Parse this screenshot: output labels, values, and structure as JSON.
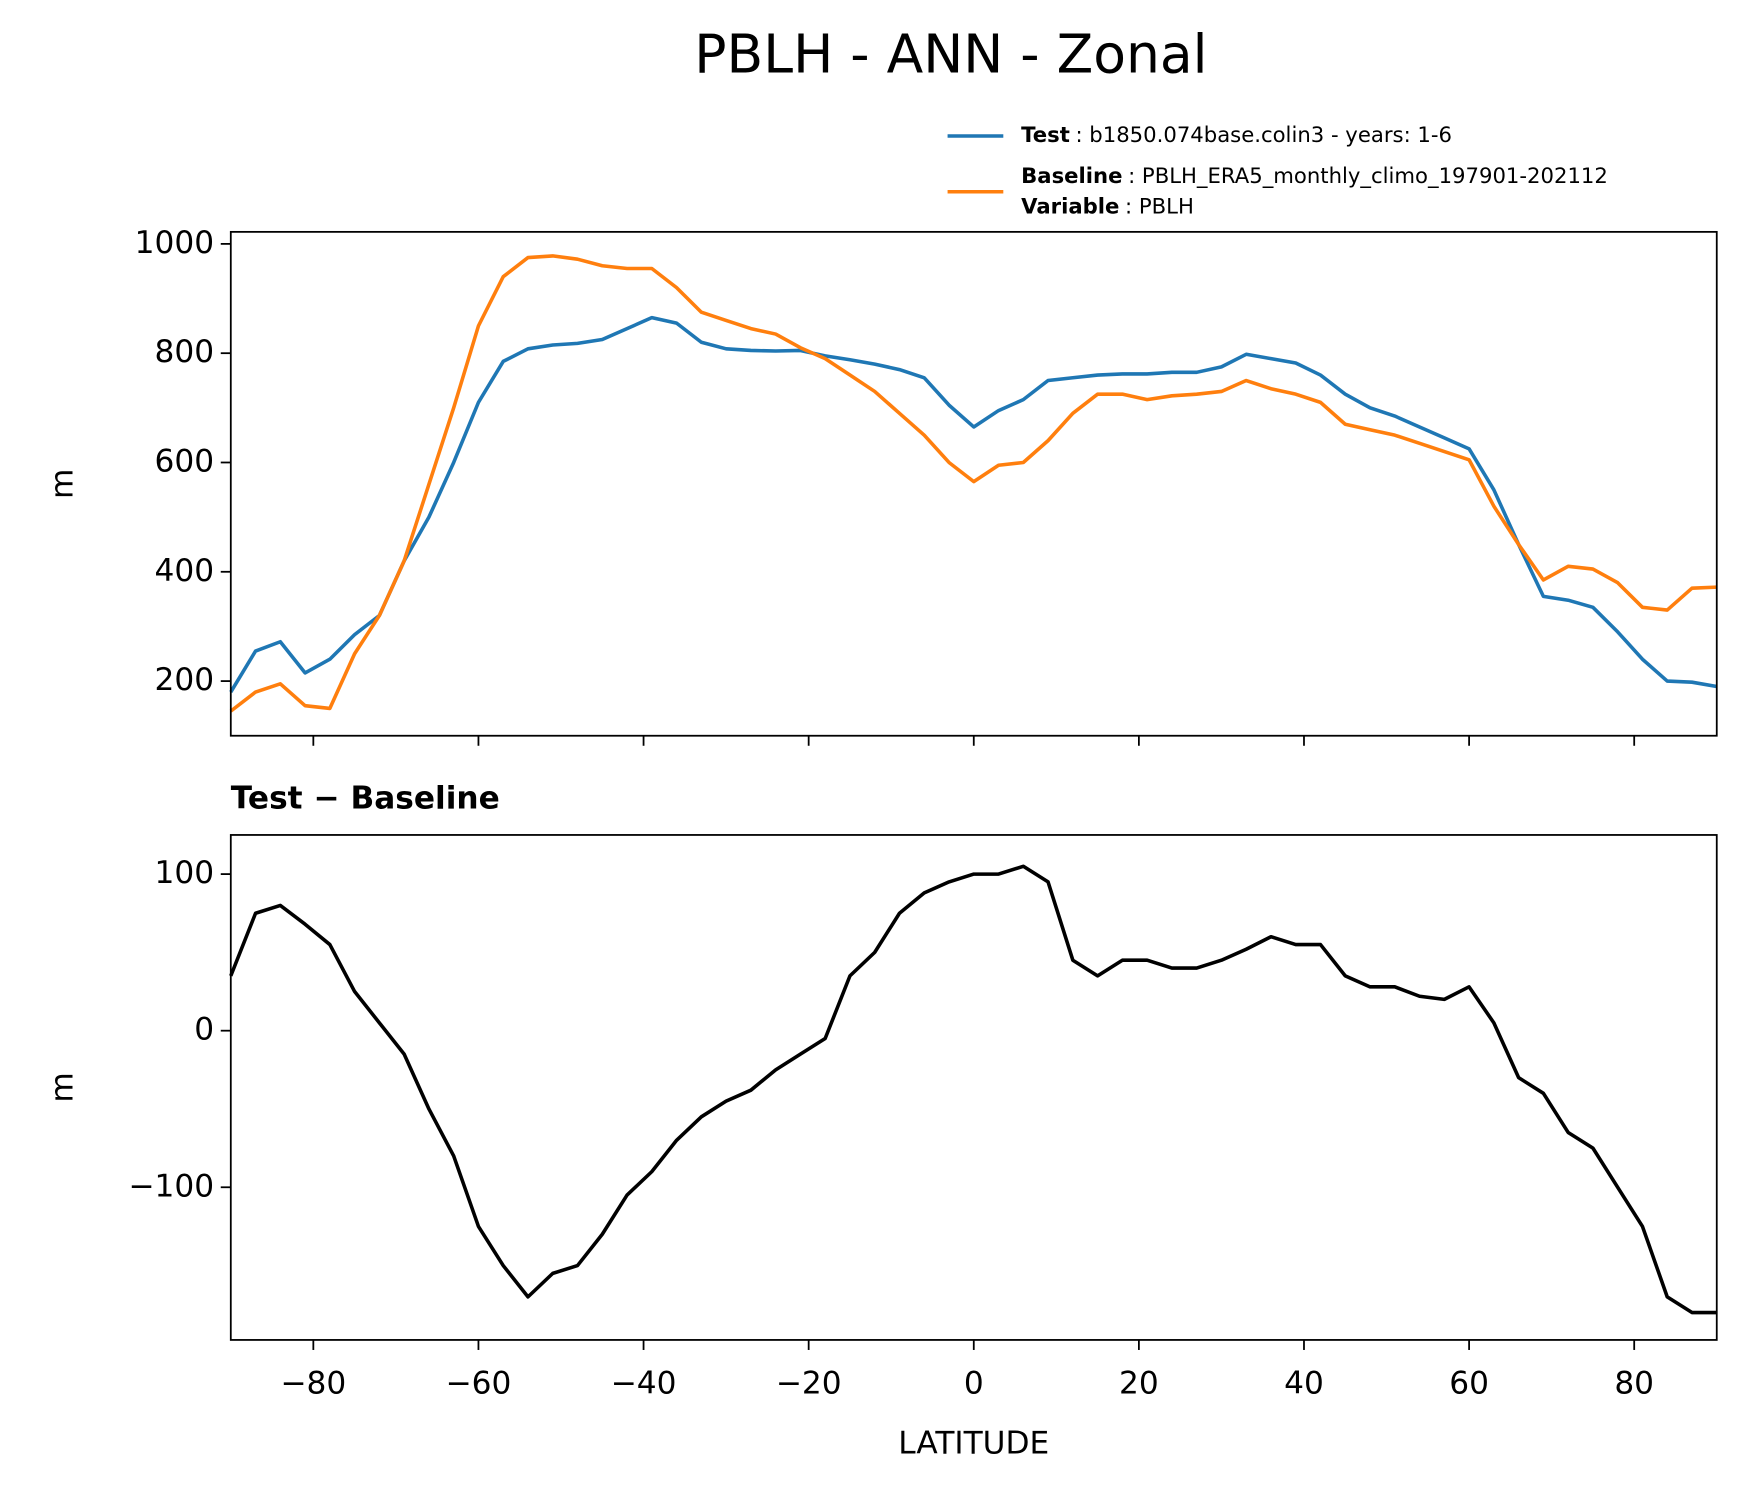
{
  "title": "PBLH - ANN - Zonal",
  "chart_data": [
    {
      "type": "line",
      "ylabel": "m",
      "xlim": [
        -90,
        90
      ],
      "xticks": [
        -80,
        -60,
        -40,
        -20,
        0,
        20,
        40,
        60,
        80
      ],
      "xtick_labels": false,
      "ylim": [
        100,
        1022
      ],
      "yticks": [
        200,
        400,
        600,
        800,
        1000
      ],
      "legend": "upper right",
      "x": [
        -90,
        -87,
        -84,
        -81,
        -78,
        -75,
        -72,
        -69,
        -66,
        -63,
        -60,
        -57,
        -54,
        -51,
        -48,
        -45,
        -42,
        -39,
        -36,
        -33,
        -30,
        -27,
        -24,
        -21,
        -18,
        -15,
        -12,
        -9,
        -6,
        -3,
        0,
        3,
        6,
        9,
        12,
        15,
        18,
        21,
        24,
        27,
        30,
        33,
        36,
        39,
        42,
        45,
        48,
        51,
        54,
        57,
        60,
        63,
        66,
        69,
        72,
        75,
        78,
        81,
        84,
        87,
        90
      ],
      "series": [
        {
          "name": "Test",
          "description": ": b1850.074base.colin3 - years: 1-6",
          "color": "#1f77b4",
          "values": [
            180,
            255,
            272,
            215,
            240,
            285,
            320,
            420,
            500,
            600,
            710,
            785,
            808,
            815,
            818,
            825,
            845,
            865,
            855,
            820,
            808,
            805,
            804,
            805,
            795,
            788,
            780,
            770,
            755,
            705,
            665,
            695,
            715,
            750,
            755,
            760,
            762,
            762,
            765,
            765,
            775,
            798,
            790,
            782,
            760,
            725,
            700,
            685,
            665,
            645,
            625,
            550,
            450,
            355,
            348,
            335,
            290,
            240,
            200,
            198,
            190
          ]
        },
        {
          "name": "Baseline",
          "description": ": PBLH_ERA5_monthly_climo_197901-202112",
          "color": "#ff7f0e",
          "values": [
            145,
            180,
            195,
            155,
            150,
            250,
            320,
            420,
            560,
            700,
            850,
            940,
            975,
            978,
            972,
            960,
            955,
            955,
            920,
            875,
            860,
            845,
            835,
            810,
            790,
            760,
            730,
            690,
            650,
            600,
            565,
            595,
            600,
            640,
            690,
            725,
            725,
            715,
            722,
            725,
            730,
            750,
            735,
            725,
            710,
            670,
            660,
            650,
            635,
            620,
            605,
            520,
            450,
            385,
            410,
            405,
            380,
            335,
            330,
            370,
            372
          ]
        }
      ],
      "legend_extra": {
        "name": "Variable",
        "description": ": PBLH"
      }
    },
    {
      "type": "line",
      "subtitle": "Test − Baseline",
      "ylabel": "m",
      "xlabel": "LATITUDE",
      "xlim": [
        -90,
        90
      ],
      "xticks": [
        {
          "value": -80,
          "label": "−80"
        },
        {
          "value": -60,
          "label": "−60"
        },
        {
          "value": -40,
          "label": "−40"
        },
        {
          "value": -20,
          "label": "−20"
        },
        0,
        20,
        40,
        60,
        80
      ],
      "ylim": [
        -197.5,
        125
      ],
      "yticks": [
        {
          "value": -100,
          "label": "−100"
        },
        0,
        100
      ],
      "x": [
        -90,
        -87,
        -84,
        -81,
        -78,
        -75,
        -72,
        -69,
        -66,
        -63,
        -60,
        -57,
        -54,
        -51,
        -48,
        -45,
        -42,
        -39,
        -36,
        -33,
        -30,
        -27,
        -24,
        -21,
        -18,
        -15,
        -12,
        -9,
        -6,
        -3,
        0,
        3,
        6,
        9,
        12,
        15,
        18,
        21,
        24,
        27,
        30,
        33,
        36,
        39,
        42,
        45,
        48,
        51,
        54,
        57,
        60,
        63,
        66,
        69,
        72,
        75,
        78,
        81,
        84,
        87,
        90
      ],
      "series": [
        {
          "color": "#000000",
          "values": [
            35,
            75,
            80,
            68,
            55,
            25,
            5,
            -15,
            -50,
            -80,
            -125,
            -150,
            -170,
            -155,
            -150,
            -130,
            -105,
            -90,
            -70,
            -55,
            -45,
            -38,
            -25,
            -15,
            -5,
            35,
            50,
            75,
            88,
            95,
            100,
            100,
            105,
            95,
            45,
            35,
            45,
            45,
            40,
            40,
            45,
            52,
            60,
            55,
            55,
            35,
            28,
            28,
            22,
            20,
            28,
            5,
            -30,
            -40,
            -65,
            -75,
            -100,
            -125,
            -170,
            -180,
            -180
          ]
        }
      ]
    }
  ]
}
